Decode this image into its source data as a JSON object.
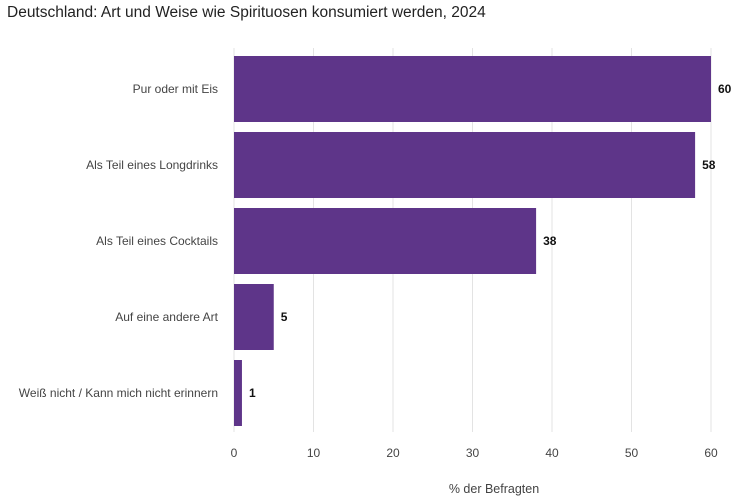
{
  "chart_data": {
    "type": "bar",
    "orientation": "horizontal",
    "title": "Deutschland: Art und Weise wie Spirituosen konsumiert werden, 2024",
    "categories": [
      "Pur oder mit Eis",
      "Als Teil eines Longdrinks",
      "Als Teil eines Cocktails",
      "Auf eine andere Art",
      "Weiß nicht / Kann mich nicht erinnern"
    ],
    "values": [
      60,
      58,
      38,
      5,
      1
    ],
    "xlabel": "% der Befragten",
    "ylabel": "",
    "xlim": [
      0,
      60
    ],
    "xticks": [
      0,
      10,
      20,
      30,
      40,
      50,
      60
    ],
    "grid": true,
    "bar_color": "#5e3589",
    "gridline_color": "#e3e3e3"
  }
}
